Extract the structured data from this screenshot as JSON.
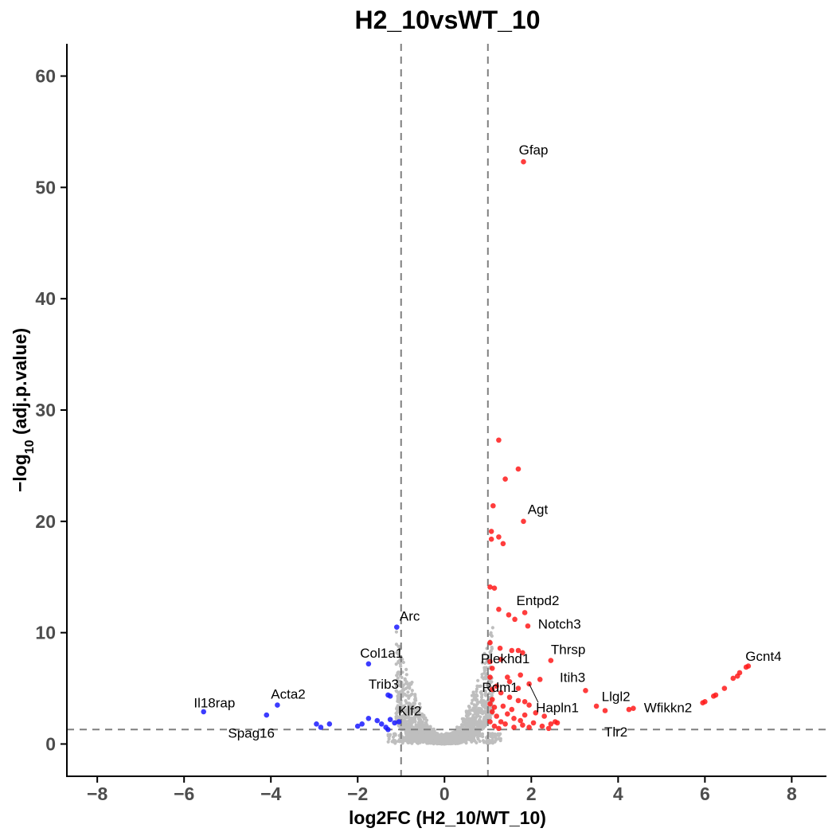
{
  "chart_data": {
    "type": "scatter",
    "title": "H2_10vsWT_10",
    "xlabel": "log2FC (H2_10/WT_10)",
    "ylabel": "-log10 (adj.p.value)",
    "xlim": [
      -8.7,
      8.8
    ],
    "ylim": [
      -2.9,
      62.9
    ],
    "x_ticks": [
      -8,
      -6,
      -4,
      -2,
      0,
      2,
      4,
      6,
      8
    ],
    "y_ticks": [
      0,
      10,
      20,
      30,
      40,
      50,
      60
    ],
    "x_tick_labels": [
      "−8",
      "−6",
      "−4",
      "−2",
      "0",
      "2",
      "4",
      "6",
      "8"
    ],
    "y_tick_labels": [
      "0",
      "10",
      "20",
      "30",
      "40",
      "50",
      "60"
    ],
    "grid": false,
    "legend": "none",
    "thresholds": {
      "log2fc": [
        -1,
        1
      ],
      "neg_log10_padj": 1.3
    },
    "colors": {
      "up": "#ff1a1a",
      "down": "#1a1aff",
      "ns": "#bebebe",
      "threshold": "#7f7f7f"
    },
    "series": [
      {
        "group": "up",
        "points": [
          [
            1.82,
            52.3
          ],
          [
            1.25,
            27.3
          ],
          [
            1.7,
            24.7
          ],
          [
            1.4,
            23.8
          ],
          [
            1.12,
            21.4
          ],
          [
            1.82,
            20.0
          ],
          [
            1.08,
            19.1
          ],
          [
            1.25,
            18.6
          ],
          [
            1.08,
            18.4
          ],
          [
            1.35,
            18.0
          ],
          [
            1.05,
            14.1
          ],
          [
            1.15,
            14.0
          ],
          [
            1.25,
            12.1
          ],
          [
            1.85,
            11.8
          ],
          [
            1.48,
            11.6
          ],
          [
            1.62,
            11.2
          ],
          [
            1.92,
            10.6
          ],
          [
            1.05,
            9.1
          ],
          [
            1.28,
            8.6
          ],
          [
            1.55,
            8.4
          ],
          [
            1.7,
            8.4
          ],
          [
            1.8,
            8.2
          ],
          [
            2.45,
            7.5
          ],
          [
            1.05,
            7.4
          ],
          [
            1.3,
            7.6
          ],
          [
            1.1,
            6.8
          ],
          [
            1.45,
            6.0
          ],
          [
            1.75,
            6.2
          ],
          [
            1.05,
            6.0
          ],
          [
            2.2,
            5.8
          ],
          [
            1.5,
            5.6
          ],
          [
            1.95,
            5.4
          ],
          [
            1.2,
            5.2
          ],
          [
            1.7,
            5.0
          ],
          [
            1.1,
            4.9
          ],
          [
            3.25,
            4.8
          ],
          [
            1.3,
            4.6
          ],
          [
            1.5,
            4.2
          ],
          [
            1.1,
            4.0
          ],
          [
            1.85,
            3.8
          ],
          [
            1.05,
            3.6
          ],
          [
            1.7,
            3.9
          ],
          [
            1.35,
            3.4
          ],
          [
            3.5,
            3.4
          ],
          [
            1.15,
            3.3
          ],
          [
            1.55,
            3.1
          ],
          [
            1.95,
            3.5
          ],
          [
            3.7,
            3.0
          ],
          [
            4.35,
            3.2
          ],
          [
            4.25,
            3.1
          ],
          [
            1.1,
            2.9
          ],
          [
            1.45,
            2.7
          ],
          [
            1.85,
            2.6
          ],
          [
            2.1,
            2.8
          ],
          [
            2.3,
            2.5
          ],
          [
            1.2,
            2.5
          ],
          [
            1.6,
            2.3
          ],
          [
            2.55,
            2.0
          ],
          [
            2.45,
            1.8
          ],
          [
            1.3,
            2.0
          ],
          [
            1.75,
            2.1
          ],
          [
            2.05,
            1.9
          ],
          [
            1.05,
            2.0
          ],
          [
            1.4,
            1.8
          ],
          [
            1.95,
            1.5
          ],
          [
            2.25,
            1.6
          ],
          [
            1.15,
            1.6
          ],
          [
            1.6,
            1.5
          ],
          [
            2.6,
            1.9
          ],
          [
            2.4,
            1.4
          ],
          [
            1.25,
            1.4
          ],
          [
            1.8,
            1.7
          ],
          [
            5.95,
            3.7
          ],
          [
            6.0,
            3.8
          ],
          [
            6.2,
            4.3
          ],
          [
            6.25,
            4.4
          ],
          [
            6.45,
            5.0
          ],
          [
            6.65,
            5.9
          ],
          [
            6.75,
            6.1
          ],
          [
            6.8,
            6.4
          ],
          [
            6.95,
            6.9
          ],
          [
            7.0,
            7.0
          ]
        ]
      },
      {
        "group": "down",
        "points": [
          [
            -1.1,
            10.5
          ],
          [
            -1.75,
            7.2
          ],
          [
            -1.3,
            4.4
          ],
          [
            -1.25,
            4.3
          ],
          [
            -3.85,
            3.5
          ],
          [
            -5.55,
            2.9
          ],
          [
            -4.1,
            2.6
          ],
          [
            -2.95,
            1.8
          ],
          [
            -2.85,
            1.5
          ],
          [
            -2.65,
            1.8
          ],
          [
            -2.0,
            1.6
          ],
          [
            -1.9,
            1.8
          ],
          [
            -1.75,
            2.3
          ],
          [
            -1.55,
            2.1
          ],
          [
            -1.35,
            1.5
          ],
          [
            -1.3,
            1.3
          ],
          [
            -1.25,
            2.2
          ],
          [
            -1.15,
            1.9
          ],
          [
            -1.05,
            2.0
          ],
          [
            -1.45,
            1.8
          ]
        ]
      }
    ],
    "labels": [
      {
        "gene": "Gfap",
        "x": 1.82,
        "y": 52.3,
        "lx": 2.05,
        "ly": 53.4
      },
      {
        "gene": "Agt",
        "x": 1.82,
        "y": 20.0,
        "lx": 2.15,
        "ly": 21.1
      },
      {
        "gene": "Entpd2",
        "x": 1.85,
        "y": 11.8,
        "lx": 2.15,
        "ly": 12.9
      },
      {
        "gene": "Notch3",
        "x": 1.92,
        "y": 10.6,
        "lx": 2.65,
        "ly": 10.8
      },
      {
        "gene": "Thrsp",
        "x": 2.45,
        "y": 7.5,
        "lx": 2.85,
        "ly": 8.5
      },
      {
        "gene": "Plekhd1",
        "x": 1.7,
        "y": 8.4,
        "lx": 1.4,
        "ly": 7.7
      },
      {
        "gene": "Itih3",
        "x": 2.2,
        "y": 5.8,
        "lx": 2.95,
        "ly": 6.0
      },
      {
        "gene": "Rdm1",
        "x": 1.5,
        "y": 5.6,
        "lx": 1.28,
        "ly": 5.1
      },
      {
        "gene": "Hapln1",
        "x": 1.95,
        "y": 5.4,
        "lx": 2.6,
        "ly": 3.3,
        "leader": true
      },
      {
        "gene": "Llgl2",
        "x": 3.5,
        "y": 3.4,
        "lx": 3.95,
        "ly": 4.3
      },
      {
        "gene": "Wfikkn2",
        "x": 4.35,
        "y": 3.2,
        "lx": 5.15,
        "ly": 3.3
      },
      {
        "gene": "Tlr2",
        "x": 3.7,
        "y": 3.0,
        "lx": 3.95,
        "ly": 1.1
      },
      {
        "gene": "Gcnt4",
        "x": 7.0,
        "y": 7.0,
        "lx": 7.35,
        "ly": 7.9
      },
      {
        "gene": "Arc",
        "x": -1.1,
        "y": 10.5,
        "lx": -0.8,
        "ly": 11.5
      },
      {
        "gene": "Col1a1",
        "x": -1.75,
        "y": 7.2,
        "lx": -1.45,
        "ly": 8.2
      },
      {
        "gene": "Trib3",
        "x": -1.3,
        "y": 4.4,
        "lx": -1.4,
        "ly": 5.4
      },
      {
        "gene": "Klf2",
        "x": -1.25,
        "y": 2.2,
        "lx": -0.8,
        "ly": 3.0
      },
      {
        "gene": "Acta2",
        "x": -3.85,
        "y": 3.5,
        "lx": -3.6,
        "ly": 4.5
      },
      {
        "gene": "Il18rap",
        "x": -5.55,
        "y": 2.9,
        "lx": -5.3,
        "ly": 3.7
      },
      {
        "gene": "Spag16",
        "x": -4.1,
        "y": 2.6,
        "lx": -4.45,
        "ly": 1.0
      }
    ]
  }
}
